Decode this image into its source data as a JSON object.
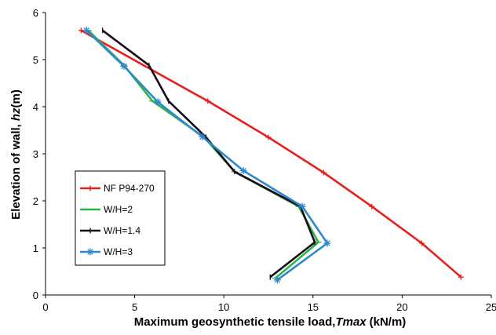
{
  "chart_data": {
    "type": "line",
    "xlabel": "Maximum geosynthetic tensile load, Tmax (kN/m)",
    "xlabel_parts": [
      "Maximum geosynthetic tensile load,",
      "Tmax",
      "(kN/m)"
    ],
    "ylabel": "Elevation of wall, hz (m)",
    "ylabel_parts": [
      "Elevation of wall,",
      "hz",
      "(m)"
    ],
    "xlim": [
      0,
      25
    ],
    "ylim": [
      0,
      6
    ],
    "xticks": [
      "0",
      "5",
      "10",
      "15",
      "20",
      "25"
    ],
    "yticks": [
      "0",
      "1",
      "2",
      "3",
      "4",
      "5",
      "6"
    ],
    "grid": false,
    "legend_position": "bottom-left",
    "series": [
      {
        "name": "NF P94-270",
        "color": "#e8201c",
        "marker": "plus",
        "x": [
          2.0,
          9.1,
          12.5,
          15.6,
          18.3,
          21.1,
          23.3
        ],
        "y": [
          5.62,
          4.12,
          3.35,
          2.6,
          1.88,
          1.1,
          0.38
        ]
      },
      {
        "name": "W/H=2",
        "color": "#2db34a",
        "marker": "dash",
        "x": [
          2.4,
          4.4,
          6.0,
          8.9,
          10.6,
          14.2,
          15.3,
          12.9
        ],
        "y": [
          5.62,
          4.88,
          4.12,
          3.35,
          2.62,
          1.88,
          1.12,
          0.36
        ]
      },
      {
        "name": "W/H=1.4",
        "color": "#1a0a1a",
        "marker": "bar",
        "x": [
          3.2,
          5.8,
          6.9,
          9.0,
          10.6,
          14.3,
          15.1,
          12.6
        ],
        "y": [
          5.62,
          4.88,
          4.12,
          3.35,
          2.62,
          1.88,
          1.12,
          0.38
        ]
      },
      {
        "name": "W/H=3",
        "color": "#2e88cc",
        "marker": "star",
        "x": [
          2.3,
          4.4,
          6.3,
          8.8,
          11.1,
          14.4,
          15.8,
          13.0
        ],
        "y": [
          5.62,
          4.86,
          4.1,
          3.36,
          2.64,
          1.88,
          1.1,
          0.32
        ]
      }
    ]
  }
}
